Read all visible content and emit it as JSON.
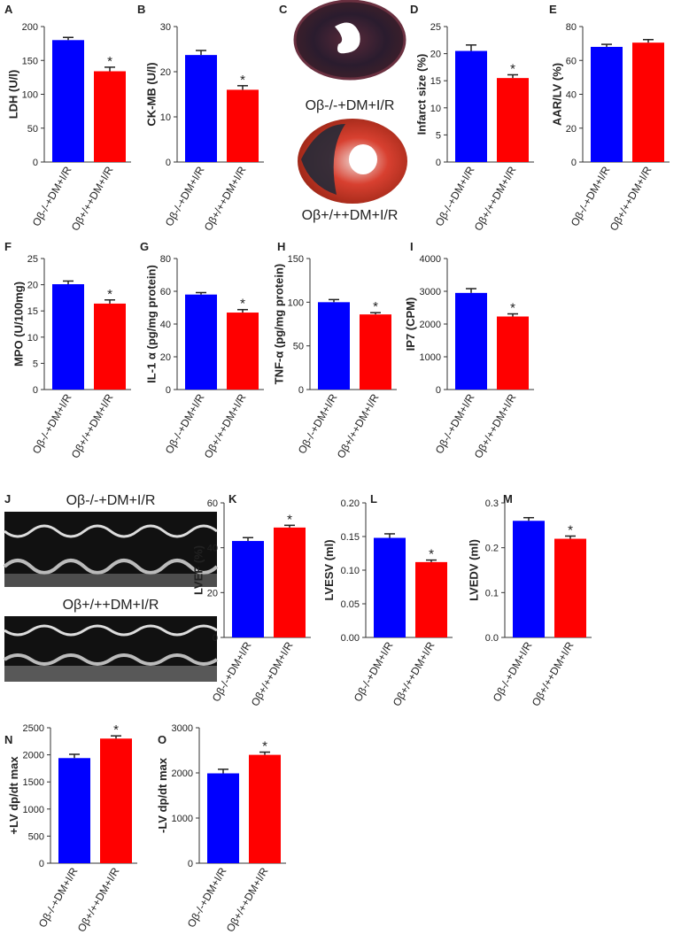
{
  "chart_data": [
    {
      "type": "bar",
      "panel": "A",
      "ylabel": "LDH (U/l)",
      "categories": [
        "Oβ-/-+DM+I/R",
        "Oβ+/++DM+I/R"
      ],
      "values": [
        180,
        134
      ],
      "errors": [
        4,
        6
      ],
      "colors": [
        "#0000ff",
        "#ff0000"
      ],
      "annotation": "*",
      "ylim": [
        0,
        200
      ],
      "yticks": [
        0,
        50,
        100,
        150,
        200
      ]
    },
    {
      "type": "bar",
      "panel": "B",
      "ylabel": "CK-MB (U/l)",
      "categories": [
        "Oβ-/-+DM+I/R",
        "Oβ+/++DM+I/R"
      ],
      "values": [
        23.7,
        16
      ],
      "errors": [
        1,
        0.9
      ],
      "colors": [
        "#0000ff",
        "#ff0000"
      ],
      "annotation": "*",
      "ylim": [
        0,
        30
      ],
      "yticks": [
        0,
        10,
        20,
        30
      ]
    },
    {
      "type": "bar",
      "panel": "D",
      "ylabel": "Infarct size (%)",
      "categories": [
        "Oβ-/-+DM+I/R",
        "Oβ+/++DM+I/R"
      ],
      "values": [
        20.5,
        15.5
      ],
      "errors": [
        1.1,
        0.6
      ],
      "colors": [
        "#0000ff",
        "#ff0000"
      ],
      "annotation": "*",
      "ylim": [
        0,
        25
      ],
      "yticks": [
        0,
        5,
        10,
        15,
        20,
        25
      ]
    },
    {
      "type": "bar",
      "panel": "E",
      "ylabel": "AAR/LV (%)",
      "categories": [
        "Oβ-/-+DM+I/R",
        "Oβ+/++DM+I/R"
      ],
      "values": [
        68,
        70.5
      ],
      "errors": [
        1.5,
        1.8
      ],
      "colors": [
        "#0000ff",
        "#ff0000"
      ],
      "ylim": [
        0,
        80
      ],
      "yticks": [
        0,
        20,
        40,
        60,
        80
      ]
    },
    {
      "type": "bar",
      "panel": "F",
      "ylabel": "MPO (U/100mg)",
      "categories": [
        "Oβ-/-+DM+I/R",
        "Oβ+/++DM+I/R"
      ],
      "values": [
        20.1,
        16.4
      ],
      "errors": [
        0.6,
        0.7
      ],
      "colors": [
        "#0000ff",
        "#ff0000"
      ],
      "annotation": "*",
      "ylim": [
        0,
        25
      ],
      "yticks": [
        0,
        5,
        10,
        15,
        20,
        25
      ]
    },
    {
      "type": "bar",
      "panel": "G",
      "ylabel": "IL-1 α (pg/mg protein)",
      "categories": [
        "Oβ-/-+DM+I/R",
        "Oβ+/++DM+I/R"
      ],
      "values": [
        58,
        47
      ],
      "errors": [
        1.2,
        1.8
      ],
      "colors": [
        "#0000ff",
        "#ff0000"
      ],
      "annotation": "*",
      "ylim": [
        0,
        80
      ],
      "yticks": [
        0,
        20,
        40,
        60,
        80
      ]
    },
    {
      "type": "bar",
      "panel": "H",
      "ylabel": "TNF-α (pg/mg protein)",
      "categories": [
        "Oβ-/-+DM+I/R",
        "Oβ+/++DM+I/R"
      ],
      "values": [
        100,
        86
      ],
      "errors": [
        3,
        2
      ],
      "colors": [
        "#0000ff",
        "#ff0000"
      ],
      "annotation": "*",
      "ylim": [
        0,
        150
      ],
      "yticks": [
        0,
        50,
        100,
        150
      ]
    },
    {
      "type": "bar",
      "panel": "I",
      "ylabel": "IP7 (CPM)",
      "categories": [
        "Oβ-/-+DM+I/R",
        "Oβ+/++DM+I/R"
      ],
      "values": [
        2950,
        2230
      ],
      "errors": [
        130,
        80
      ],
      "colors": [
        "#0000ff",
        "#ff0000"
      ],
      "annotation": "*",
      "ylim": [
        0,
        4000
      ],
      "yticks": [
        0,
        1000,
        2000,
        3000,
        4000
      ]
    },
    {
      "type": "bar",
      "panel": "K",
      "ylabel": "LVEF (%)",
      "categories": [
        "Oβ-/-+DM+I/R",
        "Oβ+/++DM+I/R"
      ],
      "values": [
        43,
        49
      ],
      "errors": [
        1.5,
        1
      ],
      "colors": [
        "#0000ff",
        "#ff0000"
      ],
      "annotation": "*",
      "ylim": [
        0,
        60
      ],
      "yticks": [
        0,
        20,
        40,
        60
      ]
    },
    {
      "type": "bar",
      "panel": "L",
      "ylabel": "LVESV (ml)",
      "categories": [
        "Oβ-/-+DM+I/R",
        "Oβ+/++DM+I/R"
      ],
      "values": [
        0.148,
        0.112
      ],
      "errors": [
        0.006,
        0.003
      ],
      "colors": [
        "#0000ff",
        "#ff0000"
      ],
      "annotation": "*",
      "ylim": [
        0,
        0.2
      ],
      "yticks": [
        {
          "value": 0,
          "label": "0.00"
        },
        {
          "value": 0.05,
          "label": "0.05"
        },
        {
          "value": 0.1,
          "label": "0.10"
        },
        {
          "value": 0.15,
          "label": "0.15"
        },
        {
          "value": 0.2,
          "label": "0.20"
        }
      ]
    },
    {
      "type": "bar",
      "panel": "M",
      "ylabel": "LVEDV (ml)",
      "categories": [
        "Oβ-/-+DM+I/R",
        "Oβ+/++DM+I/R"
      ],
      "values": [
        0.26,
        0.22
      ],
      "errors": [
        0.007,
        0.006
      ],
      "colors": [
        "#0000ff",
        "#ff0000"
      ],
      "annotation": "*",
      "ylim": [
        0,
        0.3
      ],
      "yticks": [
        {
          "value": 0,
          "label": "0.0"
        },
        0.1,
        0.2,
        0.3
      ]
    },
    {
      "type": "bar",
      "panel": "N",
      "ylabel": "+LV dp/dt max",
      "categories": [
        "Oβ-/-+DM+I/R",
        "Oβ+/++DM+I/R"
      ],
      "values": [
        1940,
        2300
      ],
      "errors": [
        70,
        50
      ],
      "colors": [
        "#0000ff",
        "#ff0000"
      ],
      "annotation": "*",
      "ylim": [
        0,
        2500
      ],
      "yticks": [
        0,
        500,
        1000,
        1500,
        2000,
        2500
      ]
    },
    {
      "type": "bar",
      "panel": "O",
      "ylabel": "-LV dp/dt max",
      "categories": [
        "Oβ-/-+DM+I/R",
        "Oβ+/++DM+I/R"
      ],
      "values": [
        1990,
        2400
      ],
      "errors": [
        90,
        60
      ],
      "colors": [
        "#0000ff",
        "#ff0000"
      ],
      "annotation": "*",
      "ylim": [
        0,
        3000
      ],
      "yticks": [
        0,
        1000,
        2000,
        3000
      ]
    }
  ],
  "images": [
    {
      "panel": "C",
      "captions": [
        "Oβ-/-+DM+I/R",
        "Oβ+/++DM+I/R"
      ]
    },
    {
      "panel": "J",
      "captions": [
        "Oβ-/-+DM+I/R",
        "Oβ+/++DM+I/R"
      ]
    }
  ]
}
